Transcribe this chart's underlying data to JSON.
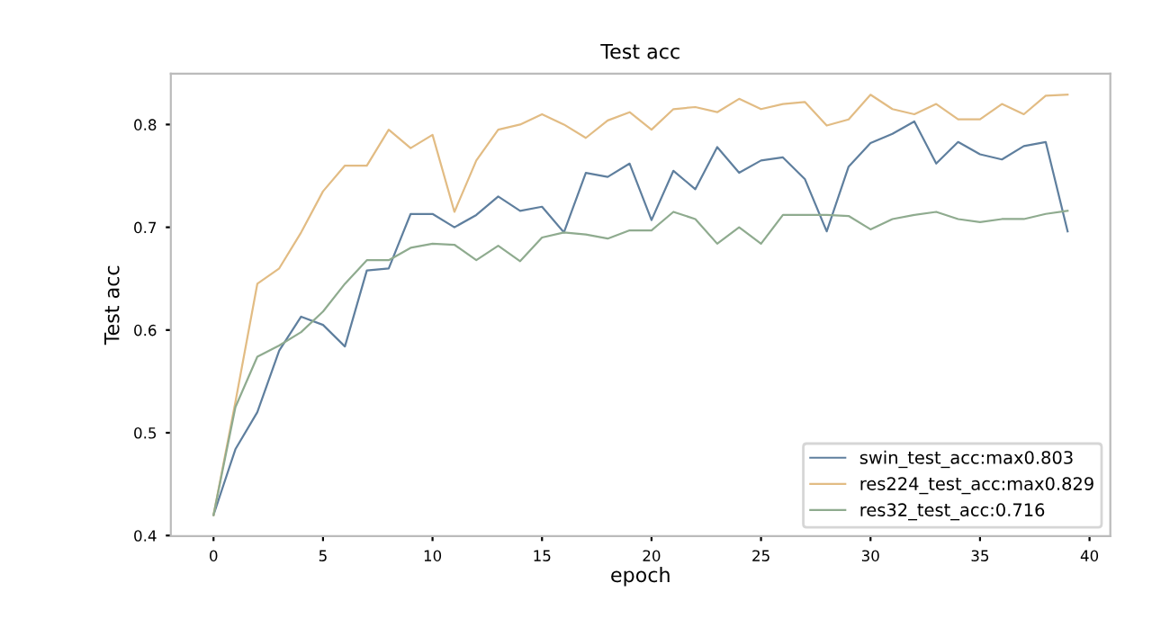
{
  "chart_data": {
    "type": "line",
    "title": "Test acc",
    "xlabel": "epoch",
    "ylabel": "Test acc",
    "x": [
      0,
      1,
      2,
      3,
      4,
      5,
      6,
      7,
      8,
      9,
      10,
      11,
      12,
      13,
      14,
      15,
      16,
      17,
      18,
      19,
      20,
      21,
      22,
      23,
      24,
      25,
      26,
      27,
      28,
      29,
      30,
      31,
      32,
      33,
      34,
      35,
      36,
      37,
      38,
      39
    ],
    "series": [
      {
        "name": "swin_test_acc:max0.803",
        "color": "#5f7f9e",
        "values": [
          0.42,
          0.484,
          0.52,
          0.58,
          0.613,
          0.605,
          0.584,
          0.658,
          0.66,
          0.713,
          0.713,
          0.7,
          0.712,
          0.73,
          0.716,
          0.72,
          0.695,
          0.753,
          0.749,
          0.762,
          0.707,
          0.755,
          0.737,
          0.778,
          0.753,
          0.765,
          0.768,
          0.747,
          0.696,
          0.759,
          0.782,
          0.791,
          0.803,
          0.762,
          0.783,
          0.771,
          0.766,
          0.779,
          0.783,
          0.696
        ]
      },
      {
        "name": "res224_test_acc:max0.829",
        "color": "#e2bc84",
        "values": [
          0.42,
          0.53,
          0.645,
          0.66,
          0.695,
          0.735,
          0.76,
          0.76,
          0.795,
          0.777,
          0.79,
          0.715,
          0.765,
          0.795,
          0.8,
          0.81,
          0.8,
          0.787,
          0.804,
          0.812,
          0.795,
          0.815,
          0.817,
          0.812,
          0.825,
          0.815,
          0.82,
          0.822,
          0.799,
          0.805,
          0.829,
          0.815,
          0.81,
          0.82,
          0.805,
          0.805,
          0.82,
          0.81,
          0.828,
          0.829
        ]
      },
      {
        "name": "res32_test_acc:0.716",
        "color": "#8fab8f",
        "values": [
          0.42,
          0.525,
          0.574,
          0.585,
          0.598,
          0.618,
          0.645,
          0.668,
          0.668,
          0.68,
          0.684,
          0.683,
          0.668,
          0.682,
          0.667,
          0.69,
          0.695,
          0.693,
          0.689,
          0.697,
          0.697,
          0.715,
          0.708,
          0.684,
          0.7,
          0.684,
          0.712,
          0.712,
          0.712,
          0.711,
          0.698,
          0.708,
          0.712,
          0.715,
          0.708,
          0.705,
          0.708,
          0.708,
          0.713,
          0.716
        ]
      }
    ],
    "xlim": [
      -1.95,
      40.95
    ],
    "ylim": [
      0.3995,
      0.8495
    ],
    "xticks": [
      0,
      5,
      10,
      15,
      20,
      25,
      30,
      35,
      40
    ],
    "yticks": [
      0.4,
      0.5,
      0.6,
      0.7,
      0.8
    ],
    "grid": false,
    "legend": "bottom right",
    "marker": "none",
    "line_style": "solid"
  }
}
